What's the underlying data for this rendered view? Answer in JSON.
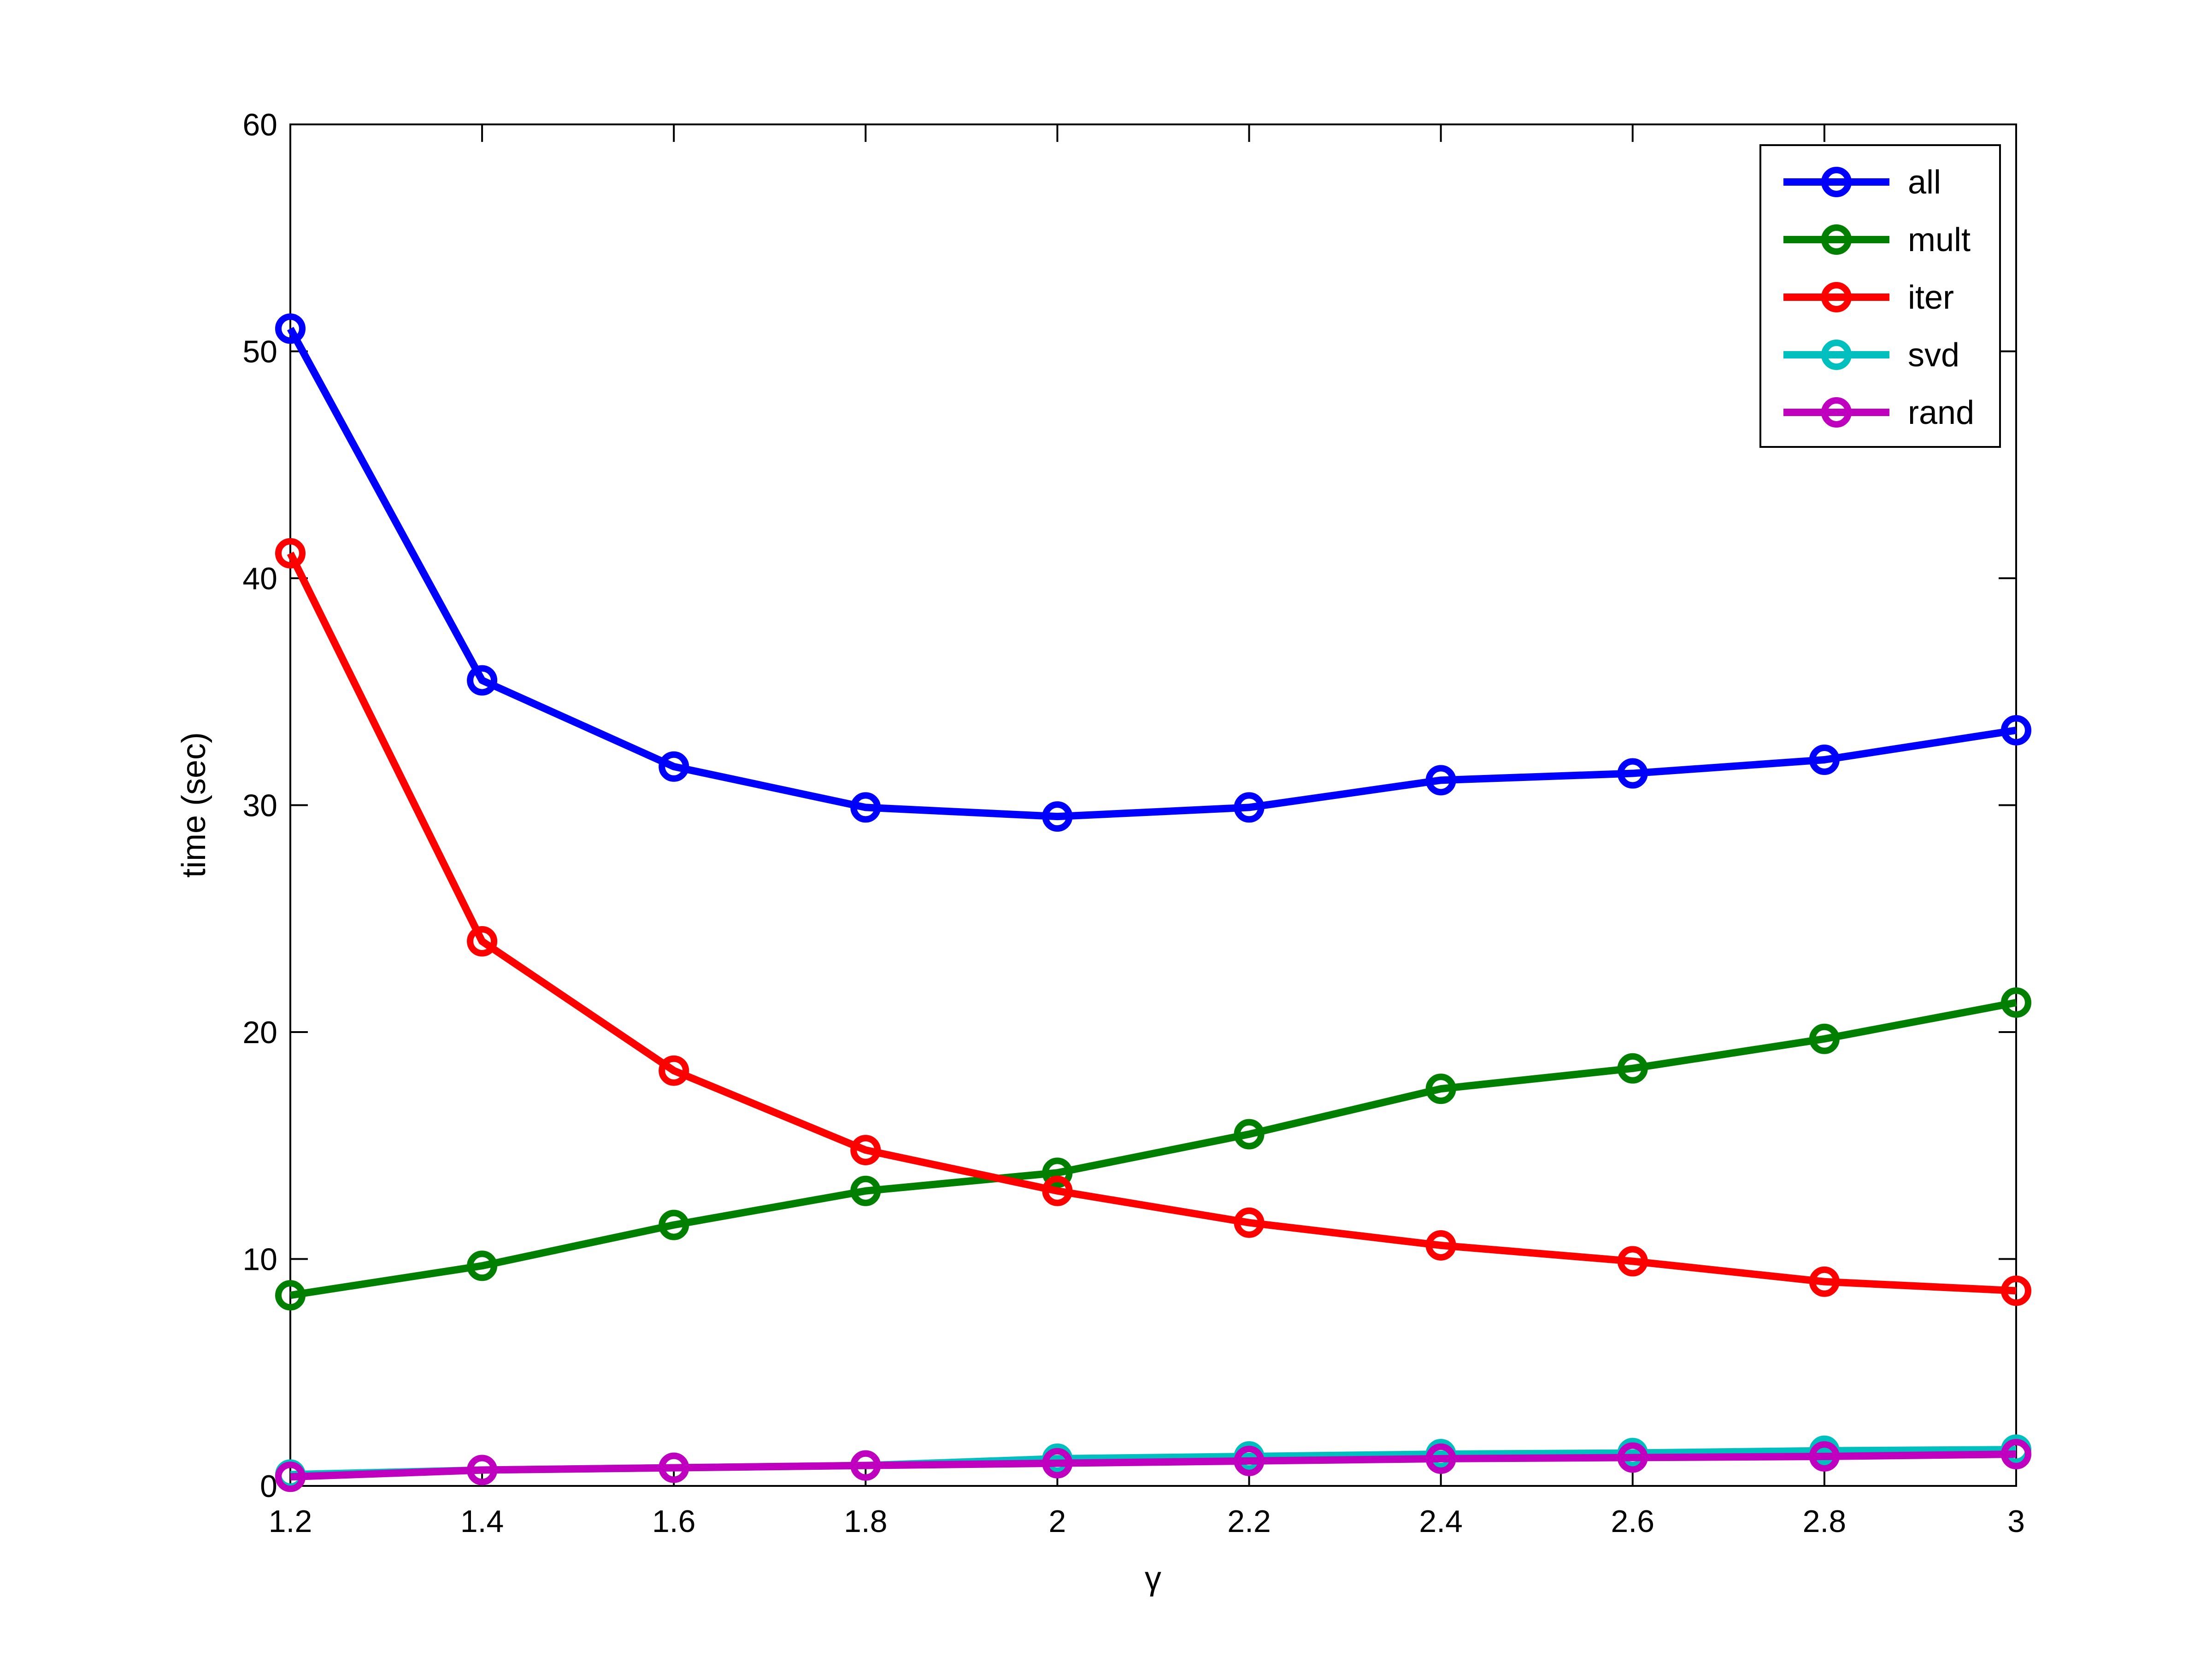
{
  "chart_data": {
    "type": "line",
    "title": "",
    "xlabel": "γ",
    "ylabel": "time (sec)",
    "xlim": [
      1.2,
      3
    ],
    "ylim": [
      0,
      60
    ],
    "xticks": [
      1.2,
      1.4,
      1.6,
      1.8,
      2,
      2.2,
      2.4,
      2.6,
      2.8,
      3
    ],
    "xtick_labels": [
      "1.2",
      "1.4",
      "1.6",
      "1.8",
      "2",
      "2.2",
      "2.4",
      "2.6",
      "2.8",
      "3"
    ],
    "yticks": [
      0,
      10,
      20,
      30,
      40,
      50,
      60
    ],
    "ytick_labels": [
      "0",
      "10",
      "20",
      "30",
      "40",
      "50",
      "60"
    ],
    "grid": false,
    "legend_position": "top-right",
    "marker": "circle",
    "x": [
      1.2,
      1.4,
      1.6,
      1.8,
      2,
      2.2,
      2.4,
      2.6,
      2.8,
      3
    ],
    "series": [
      {
        "name": "all",
        "color": "#0000ff",
        "values": [
          51.0,
          35.5,
          31.7,
          29.9,
          29.5,
          29.9,
          31.1,
          31.4,
          32.0,
          33.3
        ]
      },
      {
        "name": "mult",
        "color": "#007f00",
        "values": [
          8.4,
          9.7,
          11.5,
          13.0,
          13.8,
          15.5,
          17.5,
          18.4,
          19.7,
          21.3
        ]
      },
      {
        "name": "iter",
        "color": "#ff0000",
        "values": [
          41.1,
          24.0,
          18.3,
          14.8,
          13.0,
          11.6,
          10.6,
          9.9,
          9.0,
          8.6
        ]
      },
      {
        "name": "svd",
        "color": "#00bfbf",
        "values": [
          0.5,
          0.7,
          0.8,
          0.9,
          1.2,
          1.3,
          1.4,
          1.45,
          1.55,
          1.6
        ]
      },
      {
        "name": "rand",
        "color": "#bf00bf",
        "values": [
          0.4,
          0.7,
          0.8,
          0.9,
          1.0,
          1.1,
          1.2,
          1.25,
          1.3,
          1.4
        ]
      }
    ]
  }
}
